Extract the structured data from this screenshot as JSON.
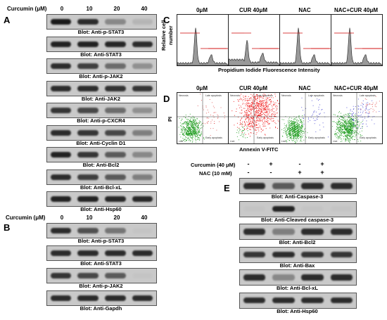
{
  "panel_letters": {
    "A": "A",
    "B": "B",
    "C": "C",
    "D": "D",
    "E": "E"
  },
  "panel_a": {
    "header_label": "Curcumin (μM)",
    "lanes": [
      "0",
      "10",
      "20",
      "40"
    ],
    "blots": [
      {
        "label": "Blot: Anti-p-STAT3",
        "intensities": [
          0.95,
          0.85,
          0.35,
          0.1
        ]
      },
      {
        "label": "Blot: Anti-STAT3",
        "intensities": [
          0.9,
          0.9,
          0.88,
          0.85
        ]
      },
      {
        "label": "Blot: Anti-p-JAK2",
        "intensities": [
          0.85,
          0.75,
          0.5,
          0.3
        ]
      },
      {
        "label": "Blot: Anti-JAK2",
        "intensities": [
          0.85,
          0.85,
          0.82,
          0.8
        ]
      },
      {
        "label": "Blot: Anti-p-CXCR4",
        "intensities": [
          0.8,
          0.7,
          0.5,
          0.3
        ]
      },
      {
        "label": "Blot: Anti-Cyclin D1",
        "intensities": [
          0.85,
          0.8,
          0.7,
          0.4
        ]
      },
      {
        "label": "Blot: Anti-Bcl2",
        "intensities": [
          0.9,
          0.8,
          0.6,
          0.35
        ]
      },
      {
        "label": "Blot: Anti-Bcl-xL",
        "intensities": [
          0.85,
          0.75,
          0.6,
          0.4
        ]
      },
      {
        "label": "Blot: Anti-Hsp60",
        "intensities": [
          0.9,
          0.9,
          0.88,
          0.88
        ]
      }
    ]
  },
  "panel_b": {
    "header_label": "Curcumin (μM)",
    "lanes": [
      "0",
      "10",
      "20",
      "40"
    ],
    "blots": [
      {
        "label": "Blot: Anti-p-STAT3",
        "intensities": [
          0.85,
          0.65,
          0.45,
          0.0
        ]
      },
      {
        "label": "Blot: Anti-STAT3",
        "intensities": [
          0.85,
          0.85,
          0.85,
          0.85
        ]
      },
      {
        "label": "Blot: Anti-p-JAK2",
        "intensities": [
          0.8,
          0.7,
          0.6,
          0.0
        ]
      },
      {
        "label": "Blot: Anti-Gapdh",
        "intensities": [
          0.85,
          0.85,
          0.85,
          0.85
        ]
      }
    ]
  },
  "panel_c": {
    "y_label_1": "Relative cell",
    "y_label_2": "number",
    "x_label": "Propidium Iodide Fluorescence Intensity",
    "histograms": [
      {
        "title": "0μM"
      },
      {
        "title": "CUR 40μM"
      },
      {
        "title": "NAC"
      },
      {
        "title": "NAC+CUR 40μM"
      }
    ]
  },
  "panel_d": {
    "y_label": "PI",
    "x_label": "Annexin V-FITC",
    "quadrant_labels": {
      "ul": "Necrosis",
      "ur": "Late apoptosis",
      "ll": "Live",
      "lr": "Early apoptosis"
    },
    "plots": [
      {
        "title": "0μM"
      },
      {
        "title": "CUR 40μM"
      },
      {
        "title": "NAC"
      },
      {
        "title": "NAC+CUR 40μM"
      }
    ]
  },
  "panel_e": {
    "curcumin_label": "Curcumin (40 μM)",
    "nac_label": "NAC     (10 mM)",
    "curcumin_signs": [
      "-",
      "+",
      "-",
      "+"
    ],
    "nac_signs": [
      "-",
      "-",
      "+",
      "+"
    ],
    "blots": [
      {
        "label": "Blot: Anti-Caspase-3",
        "intensities": [
          0.85,
          0.6,
          0.85,
          0.85
        ]
      },
      {
        "label": "Blot: Anti-Cleaved caspase-3",
        "intensities": [
          0.0,
          0.9,
          0.0,
          0.0
        ]
      },
      {
        "label": "Blot: Anti-Bcl2",
        "intensities": [
          0.85,
          0.4,
          0.85,
          0.85
        ]
      },
      {
        "label": "Blot: Anti-Bax",
        "intensities": [
          0.8,
          0.85,
          0.8,
          0.8
        ]
      },
      {
        "label": "Blot: Anti-Bcl-xL",
        "intensities": [
          0.85,
          0.35,
          0.85,
          0.85
        ]
      },
      {
        "label": "Blot: Anti-Hsp60",
        "intensities": [
          0.85,
          0.85,
          0.85,
          0.85
        ]
      }
    ]
  }
}
